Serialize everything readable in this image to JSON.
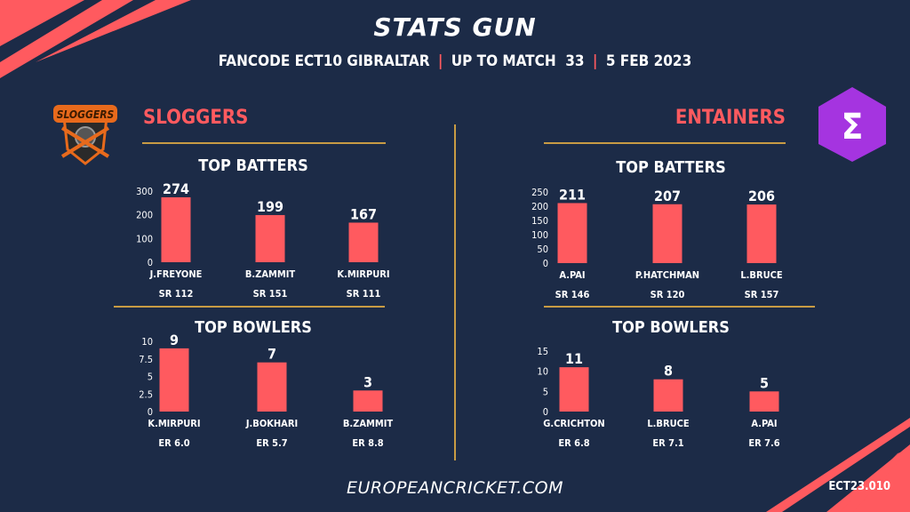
{
  "header": {
    "title": "STATS GUN",
    "competition": "FANCODE ECT10 GIBRALTAR",
    "sep": "|",
    "match": "UP TO MATCH  33",
    "date": "5 FEB 2023"
  },
  "teams": {
    "left": {
      "name": "SLOGGERS",
      "logo_text": "SLOGGERS"
    },
    "right": {
      "name": "ENTAINERS",
      "logo_text": "Σ"
    }
  },
  "sections": {
    "batters": "TOP BATTERS",
    "bowlers": "TOP BOWLERS"
  },
  "footer": {
    "site": "EUROPEANCRICKET.COM",
    "code": "ECT23.010"
  },
  "colors": {
    "bar": "#ff5a5f",
    "accent": "#ff5a5f",
    "rule": "#c89b44",
    "background": "#1c2b47"
  },
  "chart_data": [
    {
      "type": "bar",
      "team": "SLOGGERS",
      "title": "TOP BATTERS",
      "categories": [
        "J.FREYONE",
        "B.ZAMMIT",
        "K.MIRPURI"
      ],
      "values": [
        274,
        199,
        167
      ],
      "sublabels": [
        "SR 112",
        "SR 151",
        "SR 111"
      ],
      "ylim": [
        0,
        300
      ],
      "yticks": [
        0,
        100,
        200,
        300
      ],
      "grid": false
    },
    {
      "type": "bar",
      "team": "SLOGGERS",
      "title": "TOP BOWLERS",
      "categories": [
        "K.MIRPURI",
        "J.BOKHARI",
        "B.ZAMMIT"
      ],
      "values": [
        9,
        7,
        3
      ],
      "sublabels": [
        "ER 6.0",
        "ER 5.7",
        "ER 8.8"
      ],
      "ylim": [
        0,
        10
      ],
      "yticks": [
        0,
        2.5,
        5,
        7.5,
        10
      ],
      "grid": false
    },
    {
      "type": "bar",
      "team": "ENTAINERS",
      "title": "TOP BATTERS",
      "categories": [
        "A.PAI",
        "P.HATCHMAN",
        "L.BRUCE"
      ],
      "values": [
        211,
        207,
        206
      ],
      "sublabels": [
        "SR 146",
        "SR 120",
        "SR 157"
      ],
      "ylim": [
        0,
        250
      ],
      "yticks": [
        0,
        50,
        100,
        150,
        200,
        250
      ],
      "grid": false
    },
    {
      "type": "bar",
      "team": "ENTAINERS",
      "title": "TOP BOWLERS",
      "categories": [
        "G.CRICHTON",
        "L.BRUCE",
        "A.PAI"
      ],
      "values": [
        11,
        8,
        5
      ],
      "sublabels": [
        "ER 6.8",
        "ER 7.1",
        "ER 7.6"
      ],
      "ylim": [
        0,
        15
      ],
      "yticks": [
        0,
        5,
        10,
        15
      ],
      "grid": false
    }
  ]
}
